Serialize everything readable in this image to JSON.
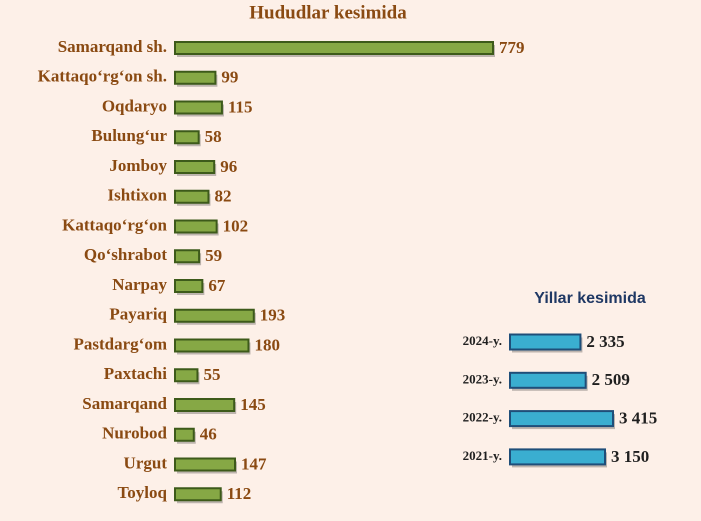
{
  "chart_data": [
    {
      "type": "hbar",
      "title": "Hududlar kesimida",
      "color": "#86a845",
      "categories": [
        "Samarqand sh.",
        "Kattaqo‘rg‘on sh.",
        "Oqdaryo",
        "Bulung‘ur",
        "Jomboy",
        "Ishtixon",
        "Kattaqo‘rg‘on",
        "Qo‘shrabot",
        "Narpay",
        "Payariq",
        "Pastdarg‘om",
        "Paxtachi",
        "Samarqand",
        "Nurobod",
        "Urgut",
        "Toyloq"
      ],
      "values": [
        779,
        99,
        115,
        58,
        96,
        82,
        102,
        59,
        67,
        193,
        180,
        55,
        145,
        46,
        147,
        112
      ]
    },
    {
      "type": "hbar",
      "title": "Yillar kesimida",
      "color": "#3aaed0",
      "categories": [
        "2024-y.",
        "2023-y.",
        "2022-y.",
        "2021-y."
      ],
      "values": [
        2335,
        2509,
        3415,
        3150
      ],
      "value_labels": [
        "2 335",
        "2 509",
        "3 415",
        "3 150"
      ]
    }
  ]
}
